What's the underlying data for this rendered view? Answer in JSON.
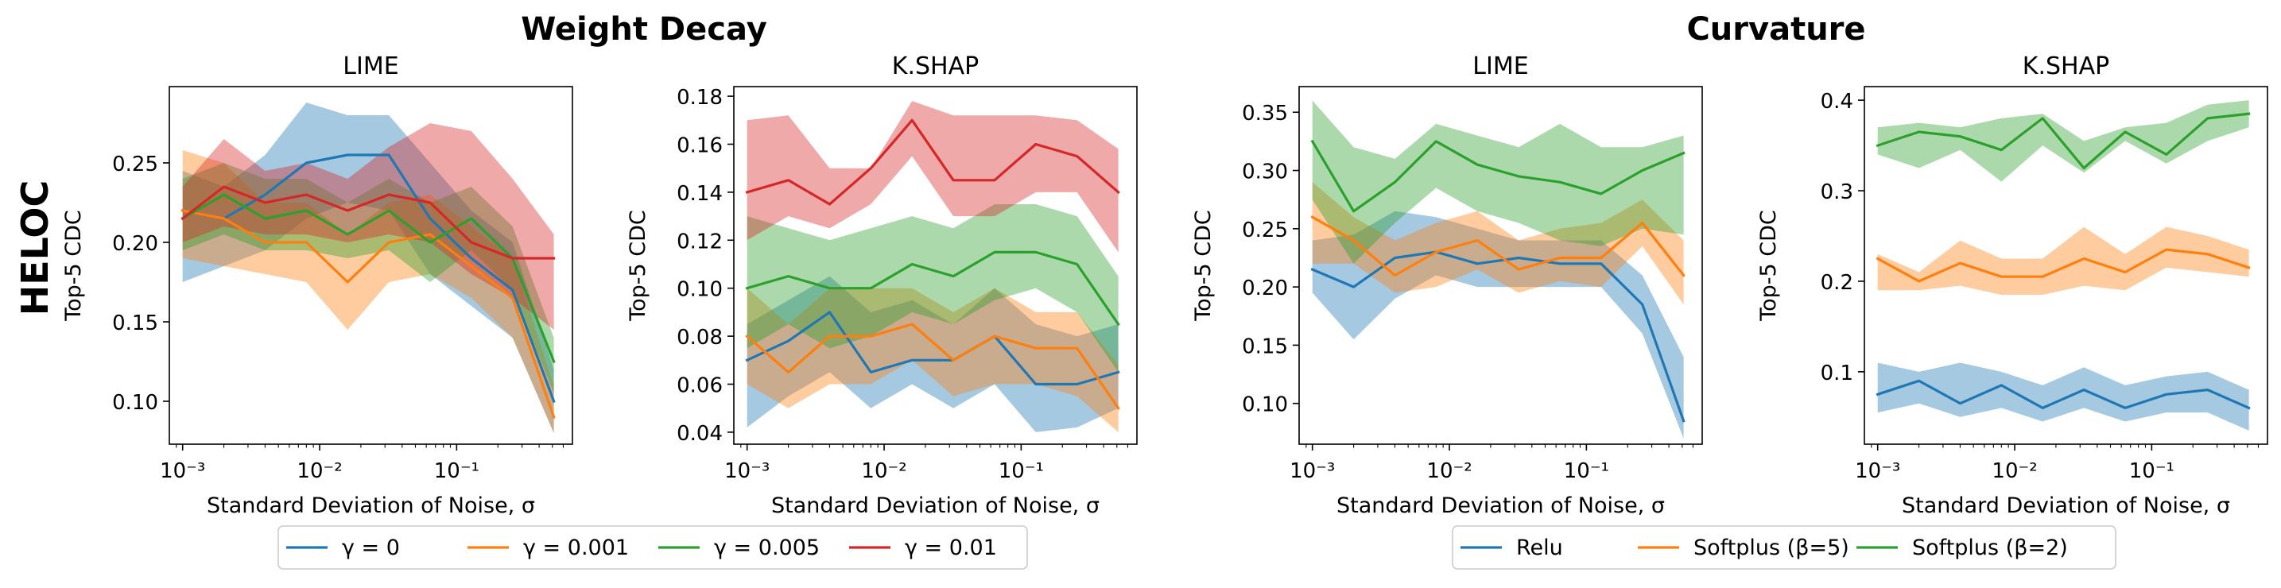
{
  "figure": {
    "row_label": "HELOC",
    "group_titles": [
      "Weight Decay",
      "Curvature"
    ],
    "legend_left": [
      "γ = 0",
      "γ = 0.001",
      "γ = 0.005",
      "γ = 0.01"
    ],
    "legend_right": [
      "Relu",
      "Softplus (β=5)",
      "Softplus (β=2)"
    ],
    "colors": {
      "blue": "#1f77b4",
      "orange": "#ff7f0e",
      "green": "#2ca02c",
      "red": "#d62728"
    }
  },
  "chart_data": [
    {
      "type": "line",
      "title": "LIME",
      "group": "Weight Decay",
      "xlabel": "Standard Deviation of Noise, σ",
      "ylabel": "Top-5 CDC",
      "xscale": "log",
      "xlim": [
        0.0008,
        0.7
      ],
      "ylim": [
        0.073,
        0.298
      ],
      "yticks": [
        0.1,
        0.15,
        0.2,
        0.25
      ],
      "ytick_labels": [
        "0.10",
        "0.15",
        "0.20",
        "0.25"
      ],
      "xticks": [
        0.001,
        0.01,
        0.1
      ],
      "xtick_labels": [
        "10⁻³",
        "10⁻²",
        "10⁻¹"
      ],
      "x": [
        0.001,
        0.002,
        0.004,
        0.008,
        0.016,
        0.032,
        0.064,
        0.128,
        0.256,
        0.512
      ],
      "series": [
        {
          "name": "γ = 0",
          "color": "#1f77b4",
          "values": [
            0.22,
            0.215,
            0.23,
            0.25,
            0.255,
            0.255,
            0.215,
            0.19,
            0.17,
            0.1
          ],
          "lower": [
            0.175,
            0.185,
            0.195,
            0.215,
            0.225,
            0.22,
            0.18,
            0.16,
            0.14,
            0.08
          ],
          "upper": [
            0.245,
            0.235,
            0.255,
            0.288,
            0.28,
            0.28,
            0.25,
            0.22,
            0.2,
            0.12
          ]
        },
        {
          "name": "γ = 0.001",
          "color": "#ff7f0e",
          "values": [
            0.22,
            0.215,
            0.2,
            0.2,
            0.175,
            0.2,
            0.205,
            0.185,
            0.165,
            0.09
          ],
          "lower": [
            0.19,
            0.185,
            0.18,
            0.175,
            0.145,
            0.175,
            0.18,
            0.165,
            0.14,
            0.08
          ],
          "upper": [
            0.258,
            0.25,
            0.225,
            0.225,
            0.205,
            0.225,
            0.23,
            0.21,
            0.19,
            0.11
          ]
        },
        {
          "name": "γ = 0.005",
          "color": "#2ca02c",
          "values": [
            0.215,
            0.23,
            0.215,
            0.22,
            0.205,
            0.22,
            0.2,
            0.215,
            0.19,
            0.125
          ],
          "lower": [
            0.195,
            0.205,
            0.195,
            0.195,
            0.19,
            0.195,
            0.175,
            0.195,
            0.17,
            0.105
          ],
          "upper": [
            0.24,
            0.25,
            0.24,
            0.24,
            0.225,
            0.24,
            0.225,
            0.235,
            0.21,
            0.14
          ]
        },
        {
          "name": "γ = 0.01",
          "color": "#d62728",
          "values": [
            0.215,
            0.235,
            0.225,
            0.23,
            0.22,
            0.23,
            0.225,
            0.2,
            0.19,
            0.19
          ],
          "lower": [
            0.2,
            0.21,
            0.205,
            0.205,
            0.2,
            0.205,
            0.2,
            0.18,
            0.165,
            0.145
          ],
          "upper": [
            0.235,
            0.265,
            0.245,
            0.25,
            0.24,
            0.26,
            0.275,
            0.27,
            0.24,
            0.205
          ]
        }
      ]
    },
    {
      "type": "line",
      "title": "K.SHAP",
      "group": "Weight Decay",
      "xlabel": "Standard Deviation of Noise, σ",
      "ylabel": "Top-5 CDC",
      "xscale": "log",
      "xlim": [
        0.0008,
        0.7
      ],
      "ylim": [
        0.035,
        0.184
      ],
      "yticks": [
        0.04,
        0.06,
        0.08,
        0.1,
        0.12,
        0.14,
        0.16,
        0.18
      ],
      "ytick_labels": [
        "0.04",
        "0.06",
        "0.08",
        "0.10",
        "0.12",
        "0.14",
        "0.16",
        "0.18"
      ],
      "xticks": [
        0.001,
        0.01,
        0.1
      ],
      "xtick_labels": [
        "10⁻³",
        "10⁻²",
        "10⁻¹"
      ],
      "x": [
        0.001,
        0.002,
        0.004,
        0.008,
        0.016,
        0.032,
        0.064,
        0.128,
        0.256,
        0.512
      ],
      "series": [
        {
          "name": "γ = 0",
          "color": "#1f77b4",
          "values": [
            0.07,
            0.078,
            0.09,
            0.065,
            0.07,
            0.07,
            0.08,
            0.06,
            0.06,
            0.065
          ],
          "lower": [
            0.042,
            0.055,
            0.065,
            0.05,
            0.06,
            0.05,
            0.06,
            0.04,
            0.042,
            0.05
          ],
          "upper": [
            0.085,
            0.095,
            0.105,
            0.09,
            0.095,
            0.085,
            0.1,
            0.085,
            0.08,
            0.085
          ]
        },
        {
          "name": "γ = 0.001",
          "color": "#ff7f0e",
          "values": [
            0.08,
            0.065,
            0.08,
            0.08,
            0.085,
            0.07,
            0.08,
            0.075,
            0.075,
            0.05
          ],
          "lower": [
            0.06,
            0.05,
            0.06,
            0.06,
            0.07,
            0.055,
            0.06,
            0.06,
            0.055,
            0.04
          ],
          "upper": [
            0.1,
            0.085,
            0.1,
            0.1,
            0.1,
            0.09,
            0.1,
            0.09,
            0.09,
            0.068
          ]
        },
        {
          "name": "γ = 0.005",
          "color": "#2ca02c",
          "values": [
            0.1,
            0.105,
            0.1,
            0.1,
            0.11,
            0.105,
            0.115,
            0.115,
            0.11,
            0.085
          ],
          "lower": [
            0.075,
            0.085,
            0.075,
            0.08,
            0.09,
            0.085,
            0.095,
            0.1,
            0.09,
            0.065
          ],
          "upper": [
            0.13,
            0.125,
            0.12,
            0.125,
            0.13,
            0.125,
            0.135,
            0.135,
            0.13,
            0.105
          ]
        },
        {
          "name": "γ = 0.01",
          "color": "#d62728",
          "values": [
            0.14,
            0.145,
            0.135,
            0.15,
            0.17,
            0.145,
            0.145,
            0.16,
            0.155,
            0.14
          ],
          "lower": [
            0.12,
            0.13,
            0.125,
            0.135,
            0.155,
            0.13,
            0.13,
            0.14,
            0.14,
            0.115
          ],
          "upper": [
            0.17,
            0.172,
            0.15,
            0.15,
            0.178,
            0.172,
            0.172,
            0.172,
            0.17,
            0.158
          ]
        }
      ]
    },
    {
      "type": "line",
      "title": "LIME",
      "group": "Curvature",
      "xlabel": "Standard Deviation of Noise, σ",
      "ylabel": "Top-5 CDC",
      "xscale": "log",
      "xlim": [
        0.0008,
        0.7
      ],
      "ylim": [
        0.065,
        0.372
      ],
      "yticks": [
        0.1,
        0.15,
        0.2,
        0.25,
        0.3,
        0.35
      ],
      "ytick_labels": [
        "0.10",
        "0.15",
        "0.20",
        "0.25",
        "0.30",
        "0.35"
      ],
      "xticks": [
        0.001,
        0.01,
        0.1
      ],
      "xtick_labels": [
        "10⁻³",
        "10⁻²",
        "10⁻¹"
      ],
      "x": [
        0.001,
        0.002,
        0.004,
        0.008,
        0.016,
        0.032,
        0.064,
        0.128,
        0.256,
        0.512
      ],
      "series": [
        {
          "name": "Relu",
          "color": "#1f77b4",
          "values": [
            0.215,
            0.2,
            0.225,
            0.23,
            0.22,
            0.225,
            0.22,
            0.22,
            0.185,
            0.085
          ],
          "lower": [
            0.195,
            0.155,
            0.19,
            0.21,
            0.2,
            0.2,
            0.2,
            0.2,
            0.16,
            0.07
          ],
          "upper": [
            0.24,
            0.245,
            0.265,
            0.26,
            0.25,
            0.24,
            0.24,
            0.24,
            0.21,
            0.14
          ]
        },
        {
          "name": "Softplus (β=5)",
          "color": "#ff7f0e",
          "values": [
            0.26,
            0.24,
            0.21,
            0.23,
            0.24,
            0.215,
            0.225,
            0.225,
            0.255,
            0.21
          ],
          "lower": [
            0.22,
            0.22,
            0.195,
            0.2,
            0.215,
            0.195,
            0.205,
            0.2,
            0.235,
            0.185
          ],
          "upper": [
            0.29,
            0.26,
            0.24,
            0.255,
            0.265,
            0.24,
            0.25,
            0.255,
            0.275,
            0.24
          ]
        },
        {
          "name": "Softplus (β=2)",
          "color": "#2ca02c",
          "values": [
            0.325,
            0.265,
            0.29,
            0.325,
            0.305,
            0.295,
            0.29,
            0.28,
            0.3,
            0.315
          ],
          "lower": [
            0.275,
            0.22,
            0.255,
            0.285,
            0.265,
            0.255,
            0.24,
            0.235,
            0.25,
            0.245
          ],
          "upper": [
            0.36,
            0.32,
            0.31,
            0.34,
            0.33,
            0.32,
            0.34,
            0.32,
            0.32,
            0.33
          ]
        }
      ]
    },
    {
      "type": "line",
      "title": "K.SHAP",
      "group": "Curvature",
      "xlabel": "Standard Deviation of Noise, σ",
      "ylabel": "Top-5 CDC",
      "xscale": "log",
      "xlim": [
        0.0008,
        0.7
      ],
      "ylim": [
        0.02,
        0.415
      ],
      "yticks": [
        0.1,
        0.2,
        0.3,
        0.4
      ],
      "ytick_labels": [
        "0.1",
        "0.2",
        "0.3",
        "0.4"
      ],
      "xticks": [
        0.001,
        0.01,
        0.1
      ],
      "xtick_labels": [
        "10⁻³",
        "10⁻²",
        "10⁻¹"
      ],
      "x": [
        0.001,
        0.002,
        0.004,
        0.008,
        0.016,
        0.032,
        0.064,
        0.128,
        0.256,
        0.512
      ],
      "series": [
        {
          "name": "Relu",
          "color": "#1f77b4",
          "values": [
            0.075,
            0.09,
            0.065,
            0.085,
            0.06,
            0.08,
            0.06,
            0.075,
            0.08,
            0.06
          ],
          "lower": [
            0.055,
            0.065,
            0.05,
            0.06,
            0.045,
            0.06,
            0.045,
            0.055,
            0.055,
            0.035
          ],
          "upper": [
            0.11,
            0.1,
            0.11,
            0.1,
            0.085,
            0.105,
            0.085,
            0.095,
            0.1,
            0.08
          ]
        },
        {
          "name": "Softplus (β=5)",
          "color": "#ff7f0e",
          "values": [
            0.225,
            0.2,
            0.22,
            0.205,
            0.205,
            0.225,
            0.21,
            0.235,
            0.23,
            0.215
          ],
          "lower": [
            0.19,
            0.19,
            0.195,
            0.185,
            0.185,
            0.195,
            0.19,
            0.215,
            0.21,
            0.205
          ],
          "upper": [
            0.23,
            0.21,
            0.245,
            0.225,
            0.225,
            0.26,
            0.23,
            0.26,
            0.25,
            0.235
          ]
        },
        {
          "name": "Softplus (β=2)",
          "color": "#2ca02c",
          "values": [
            0.35,
            0.365,
            0.36,
            0.345,
            0.38,
            0.325,
            0.365,
            0.34,
            0.38,
            0.385
          ],
          "lower": [
            0.34,
            0.325,
            0.345,
            0.31,
            0.35,
            0.32,
            0.355,
            0.33,
            0.355,
            0.37
          ],
          "upper": [
            0.37,
            0.375,
            0.37,
            0.38,
            0.385,
            0.355,
            0.37,
            0.375,
            0.395,
            0.4
          ]
        }
      ]
    }
  ]
}
